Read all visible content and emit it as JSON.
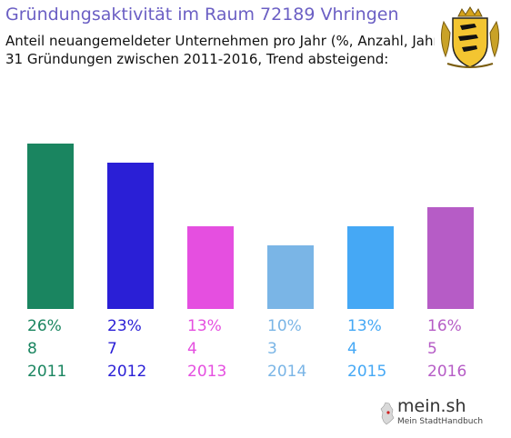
{
  "header": {
    "title": "Gründungsaktivität im Raum 72189 Vhringen",
    "subtitle_line1": "Anteil neuangemeldeter Unternehmen pro Jahr (%, Anzahl, Jahr)",
    "subtitle_line2": "31 Gründungen zwischen 2011-2016, Trend absteigend:"
  },
  "crest": {
    "icon": "baden-wuerttemberg-coat-of-arms-icon"
  },
  "logo": {
    "name": "mein.sh",
    "tagline": "Mein StadtHandbuch",
    "icon": "germany-map-icon"
  },
  "chart_data": {
    "type": "bar",
    "categories": [
      "2011",
      "2012",
      "2013",
      "2014",
      "2015",
      "2016"
    ],
    "percent_labels": [
      "26%",
      "23%",
      "13%",
      "10%",
      "13%",
      "16%"
    ],
    "count_labels": [
      "8",
      "7",
      "4",
      "3",
      "4",
      "5"
    ],
    "values": [
      26,
      23,
      13,
      10,
      13,
      16
    ],
    "counts": [
      8,
      7,
      4,
      3,
      4,
      5
    ],
    "colors": [
      "#1a8560",
      "#2a1fd6",
      "#e54fe0",
      "#7ab5e6",
      "#45a8f5",
      "#b65cc6"
    ],
    "grid": false,
    "legend": "none"
  }
}
